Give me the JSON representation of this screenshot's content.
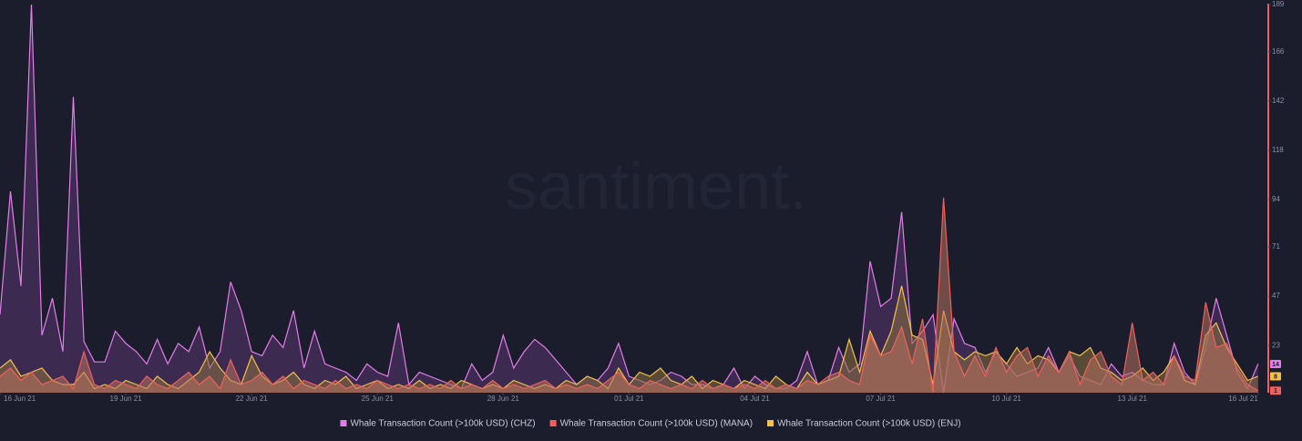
{
  "chart_data": {
    "type": "area",
    "watermark": "santiment.",
    "x": [
      0,
      0.25,
      0.5,
      0.75,
      1,
      1.25,
      1.5,
      1.75,
      2,
      2.25,
      2.5,
      2.75,
      3,
      3.25,
      3.5,
      3.75,
      4,
      4.25,
      4.5,
      4.75,
      5,
      5.25,
      5.5,
      5.75,
      6,
      6.25,
      6.5,
      6.75,
      7,
      7.25,
      7.5,
      7.75,
      8,
      8.25,
      8.5,
      8.75,
      9,
      9.25,
      9.5,
      9.75,
      10,
      10.25,
      10.5,
      10.75,
      11,
      11.25,
      11.5,
      11.75,
      12,
      12.25,
      12.5,
      12.75,
      13,
      13.25,
      13.5,
      13.75,
      14,
      14.25,
      14.5,
      14.75,
      15,
      15.25,
      15.5,
      15.75,
      16,
      16.25,
      16.5,
      16.75,
      17,
      17.25,
      17.5,
      17.75,
      18,
      18.25,
      18.5,
      18.75,
      19,
      19.25,
      19.5,
      19.75,
      20,
      20.25,
      20.5,
      20.75,
      21,
      21.25,
      21.5,
      21.75,
      22,
      22.25,
      22.5,
      22.75,
      23,
      23.25,
      23.5,
      23.75,
      24,
      24.25,
      24.5,
      24.75,
      25,
      25.25,
      25.5,
      25.75,
      26,
      26.25,
      26.5,
      26.75,
      27,
      27.25,
      27.5,
      27.75,
      28,
      28.25,
      28.5,
      28.75,
      29,
      29.25,
      29.5,
      29.75,
      30
    ],
    "series": [
      {
        "name": "Whale Transaction Count (>100k USD) (CHZ)",
        "color": "#e27ee8",
        "fill": "#5a3470",
        "values": [
          38,
          98,
          52,
          189,
          28,
          46,
          20,
          144,
          25,
          15,
          15,
          30,
          24,
          20,
          14,
          26,
          14,
          24,
          20,
          32,
          12,
          20,
          54,
          40,
          20,
          18,
          28,
          22,
          40,
          12,
          30,
          14,
          12,
          10,
          6,
          14,
          10,
          8,
          34,
          4,
          10,
          8,
          6,
          4,
          2,
          14,
          6,
          10,
          28,
          12,
          20,
          26,
          22,
          16,
          10,
          4,
          8,
          6,
          12,
          24,
          8,
          6,
          4,
          6,
          10,
          8,
          4,
          4,
          2,
          4,
          12,
          2,
          8,
          4,
          2,
          2,
          6,
          20,
          4,
          6,
          22,
          10,
          14,
          64,
          42,
          46,
          88,
          24,
          30,
          38,
          0,
          36,
          24,
          22,
          10,
          20,
          14,
          8,
          10,
          12,
          22,
          10,
          18,
          8,
          6,
          4,
          14,
          8,
          10,
          6,
          4,
          4,
          24,
          10,
          4,
          22,
          46,
          28,
          10,
          2,
          14
        ]
      },
      {
        "name": "Whale Transaction Count (>100k USD) (ENJ)",
        "color": "#f5c04a",
        "fill": "#8a7040",
        "values": [
          12,
          16,
          8,
          10,
          12,
          6,
          4,
          4,
          10,
          2,
          4,
          2,
          6,
          4,
          2,
          8,
          4,
          2,
          6,
          10,
          20,
          12,
          6,
          4,
          18,
          8,
          4,
          6,
          10,
          4,
          2,
          6,
          4,
          8,
          2,
          4,
          6,
          2,
          4,
          2,
          6,
          2,
          4,
          2,
          6,
          4,
          2,
          4,
          2,
          6,
          4,
          2,
          4,
          2,
          6,
          4,
          8,
          6,
          2,
          12,
          4,
          10,
          8,
          12,
          6,
          4,
          8,
          2,
          6,
          4,
          2,
          6,
          4,
          2,
          8,
          4,
          2,
          10,
          4,
          6,
          8,
          26,
          10,
          30,
          18,
          30,
          52,
          28,
          26,
          4,
          40,
          20,
          16,
          20,
          18,
          20,
          14,
          22,
          14,
          18,
          16,
          10,
          20,
          18,
          22,
          12,
          10,
          6,
          8,
          12,
          6,
          10,
          18,
          6,
          4,
          28,
          34,
          22,
          14,
          6,
          8
        ]
      },
      {
        "name": "Whale Transaction Count (>100k USD) (MANA)",
        "color": "#f0605a",
        "fill": "#b8715e",
        "values": [
          8,
          12,
          6,
          10,
          4,
          6,
          8,
          2,
          20,
          4,
          2,
          6,
          4,
          2,
          8,
          4,
          2,
          6,
          10,
          4,
          8,
          2,
          16,
          4,
          6,
          10,
          4,
          8,
          2,
          6,
          4,
          2,
          6,
          2,
          4,
          2,
          6,
          4,
          2,
          4,
          2,
          4,
          2,
          6,
          2,
          4,
          2,
          6,
          2,
          4,
          2,
          4,
          6,
          2,
          4,
          2,
          4,
          2,
          6,
          10,
          4,
          2,
          6,
          4,
          2,
          4,
          2,
          6,
          2,
          4,
          2,
          4,
          2,
          6,
          2,
          4,
          2,
          6,
          4,
          8,
          10,
          6,
          4,
          28,
          18,
          20,
          32,
          14,
          36,
          0,
          95,
          20,
          8,
          18,
          8,
          22,
          10,
          18,
          22,
          8,
          18,
          10,
          20,
          4,
          16,
          20,
          8,
          4,
          34,
          6,
          10,
          4,
          18,
          8,
          6,
          44,
          22,
          24,
          12,
          4,
          1
        ]
      }
    ],
    "legend_order": [
      0,
      2,
      1
    ],
    "xlim": [
      0,
      30.2
    ],
    "xticks": [
      {
        "value": 0,
        "label": "16 Jun 21"
      },
      {
        "value": 3,
        "label": "19 Jun 21"
      },
      {
        "value": 6,
        "label": "22 Jun 21"
      },
      {
        "value": 9,
        "label": "25 Jun 21"
      },
      {
        "value": 12,
        "label": "28 Jun 21"
      },
      {
        "value": 15,
        "label": "01 Jul 21"
      },
      {
        "value": 18,
        "label": "04 Jul 21"
      },
      {
        "value": 21,
        "label": "07 Jul 21"
      },
      {
        "value": 24,
        "label": "10 Jul 21"
      },
      {
        "value": 27,
        "label": "13 Jul 21"
      },
      {
        "value": 30,
        "label": "16 Jul 21"
      }
    ],
    "ylim": [
      0,
      189
    ],
    "yticks": [
      23,
      47,
      71,
      94,
      118,
      142,
      166,
      189
    ],
    "grid": false
  }
}
